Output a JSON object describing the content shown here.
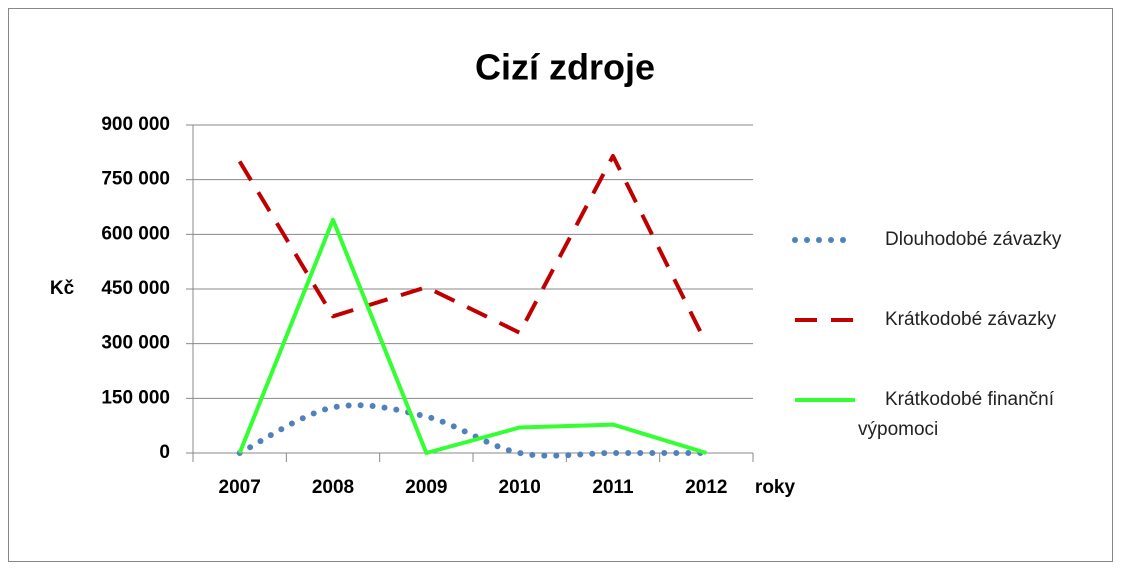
{
  "chart_data": {
    "type": "line",
    "title": "Cizí zdroje",
    "y_label": "Kč",
    "x_label": "roky",
    "categories": [
      "2007",
      "2008",
      "2009",
      "2010",
      "2011",
      "2012"
    ],
    "ylim": [
      0,
      900000
    ],
    "yticks": [
      0,
      {
        "value": 150000,
        "label": "150 000"
      },
      {
        "value": 300000,
        "label": "300 000"
      },
      {
        "value": 450000,
        "label": "450 000"
      },
      {
        "value": 600000,
        "label": "600 000"
      },
      {
        "value": 750000,
        "label": "750 000"
      },
      {
        "value": 900000,
        "label": "900 000"
      }
    ],
    "grid": true,
    "legend": "right",
    "series": [
      {
        "name": "Dlouhodobé závazky",
        "color": "#4f81bd",
        "style": "dotted",
        "smooth": true,
        "values": [
          0,
          125000,
          100000,
          0,
          0,
          0
        ]
      },
      {
        "name": "Krátkodobé závazky",
        "color": "#c00000",
        "style": "dashed",
        "values": [
          800000,
          375000,
          455000,
          330000,
          815000,
          300000
        ]
      },
      {
        "name": "Krátkodobé finanční výpomoci",
        "color": "#33ff33",
        "style": "solid",
        "values": [
          0,
          640000,
          0,
          70000,
          78000,
          0
        ]
      }
    ]
  }
}
